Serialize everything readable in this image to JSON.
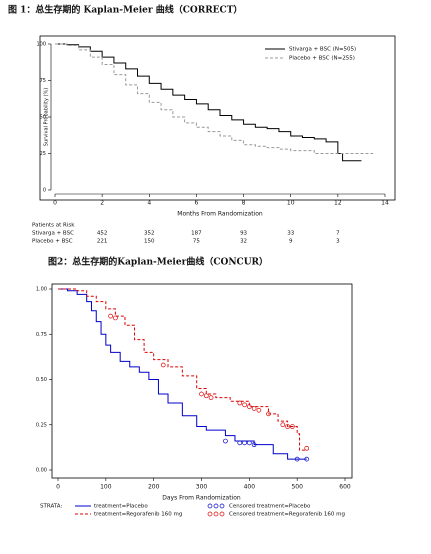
{
  "chart_data": [
    {
      "type": "line",
      "step": true,
      "title": "图 1：总生存期的 Kaplan-Meier 曲线（CORRECT）",
      "xlabel": "Months From Randomization",
      "ylabel": "Survival Probability (%)",
      "xlim": [
        0,
        14
      ],
      "xticks": [
        0,
        2,
        4,
        6,
        8,
        10,
        12,
        14
      ],
      "ylim": [
        0,
        100
      ],
      "yticks": [
        0,
        25,
        50,
        75,
        100
      ],
      "legend": "upper right",
      "series": [
        {
          "name": "Stivarga + BSC (N=505)",
          "color": "#000000",
          "dash": false,
          "x": [
            0,
            0.5,
            1,
            1.5,
            2,
            2.5,
            3,
            3.5,
            4,
            4.5,
            5,
            5.5,
            6,
            6.5,
            7,
            7.5,
            8,
            8.5,
            9,
            9.5,
            10,
            10.5,
            11,
            11.5,
            12,
            12.2,
            13
          ],
          "values": [
            100,
            99.5,
            98,
            95,
            91,
            87,
            83,
            78,
            73,
            69,
            65,
            62,
            59,
            55,
            51,
            48,
            45,
            43,
            42,
            40,
            37,
            36,
            35,
            33,
            25,
            20,
            20
          ]
        },
        {
          "name": "Placebo + BSC (N=255)",
          "color": "#999999",
          "dash": true,
          "x": [
            0,
            0.5,
            1,
            1.5,
            2,
            2.5,
            3,
            3.5,
            4,
            4.5,
            5,
            5.5,
            6,
            6.5,
            7,
            7.5,
            8,
            8.5,
            9,
            9.5,
            10,
            11,
            13.5
          ],
          "values": [
            100,
            99,
            96,
            91,
            86,
            79,
            72,
            66,
            60,
            55,
            50,
            46,
            43,
            40,
            37,
            34,
            31,
            30,
            29,
            28,
            27,
            25,
            25
          ]
        }
      ],
      "risk_table": {
        "title": "Patients at Risk",
        "rows": [
          {
            "label": "Stivarga + BSC",
            "values": [
              null,
              452,
              352,
              187,
              93,
              33,
              7,
              null
            ]
          },
          {
            "label": "Placebo + BSC",
            "values": [
              null,
              221,
              150,
              75,
              32,
              9,
              3,
              null
            ]
          }
        ]
      }
    },
    {
      "type": "line",
      "step": true,
      "title": "图2：总生存期的Kaplan-Meier曲线（CONCUR）",
      "xlabel": "Days From Randomization",
      "xlim": [
        0,
        600
      ],
      "xticks": [
        0,
        100,
        200,
        300,
        400,
        500,
        600
      ],
      "ylim": [
        0,
        1
      ],
      "yticks": [
        {
          "value": 0,
          "label": "0.00"
        },
        {
          "value": 0.25,
          "label": "0.25"
        },
        {
          "value": 0.5,
          "label": "0.50"
        },
        {
          "value": 0.75,
          "label": "0.75"
        },
        {
          "value": 1,
          "label": "1.00"
        }
      ],
      "legend": "bottom",
      "legend_title": "STRATA:",
      "series": [
        {
          "name": "treatment=Placebo",
          "color": "#0000cc",
          "dash": false,
          "x": [
            0,
            20,
            40,
            60,
            70,
            80,
            90,
            100,
            110,
            130,
            150,
            170,
            190,
            210,
            230,
            260,
            290,
            310,
            350,
            370,
            410,
            450,
            480,
            520
          ],
          "values": [
            1,
            0.99,
            0.97,
            0.93,
            0.88,
            0.82,
            0.75,
            0.69,
            0.65,
            0.6,
            0.57,
            0.54,
            0.5,
            0.42,
            0.37,
            0.3,
            0.24,
            0.22,
            0.19,
            0.16,
            0.14,
            0.09,
            0.06,
            0.06
          ]
        },
        {
          "name": "treatment=Regorafenib 160 mg",
          "color": "#dd0000",
          "dash": true,
          "x": [
            0,
            40,
            60,
            80,
            100,
            120,
            140,
            160,
            180,
            200,
            230,
            260,
            290,
            310,
            330,
            360,
            400,
            440,
            460,
            480,
            500,
            505,
            520
          ],
          "values": [
            1,
            0.99,
            0.96,
            0.93,
            0.89,
            0.85,
            0.8,
            0.72,
            0.65,
            0.61,
            0.57,
            0.52,
            0.45,
            0.42,
            0.4,
            0.38,
            0.35,
            0.31,
            0.27,
            0.24,
            0.2,
            0.11,
            0.11
          ]
        },
        {
          "name": "Censored treatment=Placebo",
          "color": "#0000cc",
          "marker": "circle",
          "x": [
            350,
            380,
            390,
            400,
            410,
            500,
            520
          ],
          "values": [
            0.16,
            0.15,
            0.15,
            0.15,
            0.14,
            0.06,
            0.06
          ]
        },
        {
          "name": "Censored treatment=Regorafenib 160 mg",
          "color": "#dd0000",
          "marker": "circle",
          "x": [
            110,
            120,
            220,
            300,
            310,
            320,
            380,
            390,
            400,
            410,
            420,
            440,
            470,
            480,
            490,
            520
          ],
          "values": [
            0.85,
            0.84,
            0.58,
            0.42,
            0.41,
            0.4,
            0.37,
            0.36,
            0.35,
            0.34,
            0.33,
            0.31,
            0.25,
            0.24,
            0.24,
            0.12
          ]
        }
      ]
    }
  ]
}
